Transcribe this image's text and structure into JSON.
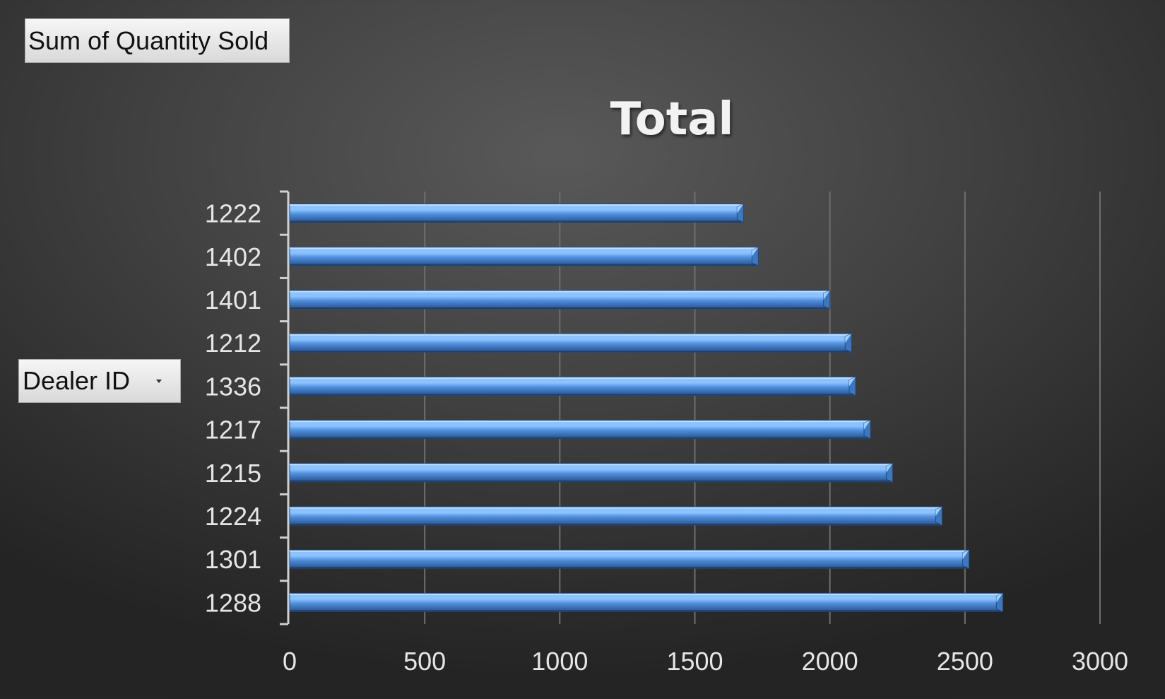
{
  "pivot_fields": {
    "value_field_label": "Sum of Quantity Sold",
    "axis_field_label": "Dealer ID"
  },
  "chart_data": {
    "type": "bar",
    "orientation": "horizontal",
    "title": "Total",
    "categories": [
      "1222",
      "1402",
      "1401",
      "1212",
      "1336",
      "1217",
      "1215",
      "1224",
      "1301",
      "1288"
    ],
    "values": [
      1680,
      1735,
      2000,
      2080,
      2095,
      2150,
      2232,
      2415,
      2515,
      2640
    ],
    "xlim": [
      0,
      3000
    ],
    "x_ticks": [
      0,
      500,
      1000,
      1500,
      2000,
      2500,
      3000
    ],
    "grid": "vertical",
    "legend": "none",
    "bar_color": "#4f8fdc",
    "bar_highlight": "#8cc3ff",
    "bar_shadow": "#28528c"
  }
}
